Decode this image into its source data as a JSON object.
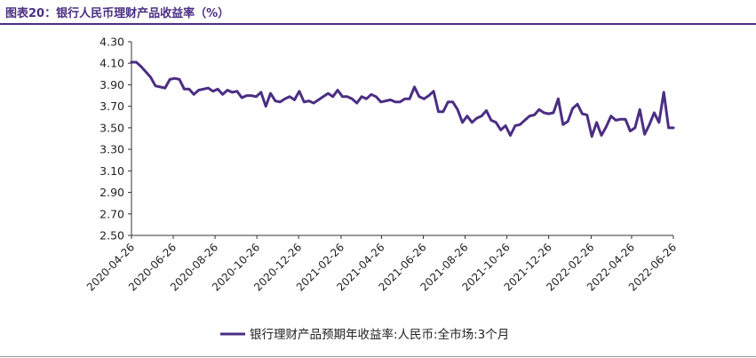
{
  "figure": {
    "title": "图表20：银行人民币理财产品收益率（%）"
  },
  "colors": {
    "accent": "#4b2e83",
    "line": "#4b2e83",
    "axis": "#333333"
  },
  "chart_data": {
    "type": "line",
    "title": "",
    "xlabel": "",
    "ylabel": "",
    "ylim": [
      2.5,
      4.3
    ],
    "yticks": [
      "4.30",
      "4.10",
      "3.90",
      "3.70",
      "3.50",
      "3.30",
      "3.10",
      "2.90",
      "2.70",
      "2.50"
    ],
    "xrange": [
      "2020-04-26",
      "2022-06-26"
    ],
    "xticks": [
      "2020-04-26",
      "2020-06-26",
      "2020-08-26",
      "2020-10-26",
      "2020-12-26",
      "2021-02-26",
      "2021-04-26",
      "2021-06-26",
      "2021-08-26",
      "2021-10-26",
      "2021-12-26",
      "2022-02-26",
      "2022-04-26",
      "2022-06-26"
    ],
    "grid": false,
    "legend": "bottom",
    "series": [
      {
        "name": "银行理财产品预期年收益率:人民币:全市场:3个月",
        "points": [
          [
            "2020-04-26",
            4.11
          ],
          [
            "2020-05-03",
            4.11
          ],
          [
            "2020-05-10",
            4.07
          ],
          [
            "2020-05-17",
            4.02
          ],
          [
            "2020-05-24",
            3.97
          ],
          [
            "2020-05-31",
            3.89
          ],
          [
            "2020-06-07",
            3.88
          ],
          [
            "2020-06-14",
            3.87
          ],
          [
            "2020-06-21",
            3.95
          ],
          [
            "2020-06-28",
            3.96
          ],
          [
            "2020-07-05",
            3.95
          ],
          [
            "2020-07-12",
            3.86
          ],
          [
            "2020-07-19",
            3.86
          ],
          [
            "2020-07-26",
            3.81
          ],
          [
            "2020-08-02",
            3.85
          ],
          [
            "2020-08-09",
            3.86
          ],
          [
            "2020-08-16",
            3.87
          ],
          [
            "2020-08-23",
            3.84
          ],
          [
            "2020-08-30",
            3.86
          ],
          [
            "2020-09-06",
            3.81
          ],
          [
            "2020-09-13",
            3.85
          ],
          [
            "2020-09-20",
            3.83
          ],
          [
            "2020-09-27",
            3.84
          ],
          [
            "2020-10-04",
            3.78
          ],
          [
            "2020-10-11",
            3.8
          ],
          [
            "2020-10-18",
            3.8
          ],
          [
            "2020-10-25",
            3.79
          ],
          [
            "2020-11-01",
            3.83
          ],
          [
            "2020-11-08",
            3.7
          ],
          [
            "2020-11-15",
            3.82
          ],
          [
            "2020-11-22",
            3.75
          ],
          [
            "2020-11-29",
            3.74
          ],
          [
            "2020-12-06",
            3.77
          ],
          [
            "2020-12-13",
            3.79
          ],
          [
            "2020-12-20",
            3.76
          ],
          [
            "2020-12-27",
            3.84
          ],
          [
            "2021-01-03",
            3.74
          ],
          [
            "2021-01-10",
            3.75
          ],
          [
            "2021-01-17",
            3.73
          ],
          [
            "2021-01-24",
            3.76
          ],
          [
            "2021-01-31",
            3.79
          ],
          [
            "2021-02-07",
            3.82
          ],
          [
            "2021-02-14",
            3.79
          ],
          [
            "2021-02-21",
            3.85
          ],
          [
            "2021-02-28",
            3.79
          ],
          [
            "2021-03-07",
            3.79
          ],
          [
            "2021-03-14",
            3.77
          ],
          [
            "2021-03-21",
            3.73
          ],
          [
            "2021-03-28",
            3.79
          ],
          [
            "2021-04-04",
            3.77
          ],
          [
            "2021-04-11",
            3.81
          ],
          [
            "2021-04-18",
            3.79
          ],
          [
            "2021-04-25",
            3.74
          ],
          [
            "2021-05-02",
            3.75
          ],
          [
            "2021-05-09",
            3.76
          ],
          [
            "2021-05-16",
            3.74
          ],
          [
            "2021-05-23",
            3.74
          ],
          [
            "2021-05-30",
            3.77
          ],
          [
            "2021-06-06",
            3.77
          ],
          [
            "2021-06-13",
            3.88
          ],
          [
            "2021-06-20",
            3.79
          ],
          [
            "2021-06-27",
            3.77
          ],
          [
            "2021-07-04",
            3.8
          ],
          [
            "2021-07-11",
            3.84
          ],
          [
            "2021-07-18",
            3.65
          ],
          [
            "2021-07-25",
            3.65
          ],
          [
            "2021-08-01",
            3.74
          ],
          [
            "2021-08-08",
            3.74
          ],
          [
            "2021-08-15",
            3.67
          ],
          [
            "2021-08-22",
            3.55
          ],
          [
            "2021-08-29",
            3.61
          ],
          [
            "2021-09-05",
            3.55
          ],
          [
            "2021-09-12",
            3.59
          ],
          [
            "2021-09-19",
            3.61
          ],
          [
            "2021-09-26",
            3.66
          ],
          [
            "2021-10-03",
            3.57
          ],
          [
            "2021-10-10",
            3.55
          ],
          [
            "2021-10-17",
            3.48
          ],
          [
            "2021-10-24",
            3.52
          ],
          [
            "2021-10-31",
            3.43
          ],
          [
            "2021-11-07",
            3.52
          ],
          [
            "2021-11-14",
            3.53
          ],
          [
            "2021-11-21",
            3.57
          ],
          [
            "2021-11-28",
            3.61
          ],
          [
            "2021-12-05",
            3.62
          ],
          [
            "2021-12-12",
            3.67
          ],
          [
            "2021-12-19",
            3.64
          ],
          [
            "2021-12-26",
            3.63
          ],
          [
            "2022-01-02",
            3.64
          ],
          [
            "2022-01-09",
            3.77
          ],
          [
            "2022-01-16",
            3.53
          ],
          [
            "2022-01-23",
            3.56
          ],
          [
            "2022-01-30",
            3.68
          ],
          [
            "2022-02-06",
            3.72
          ],
          [
            "2022-02-13",
            3.63
          ],
          [
            "2022-02-20",
            3.62
          ],
          [
            "2022-02-27",
            3.42
          ],
          [
            "2022-03-06",
            3.55
          ],
          [
            "2022-03-13",
            3.43
          ],
          [
            "2022-03-20",
            3.51
          ],
          [
            "2022-03-27",
            3.61
          ],
          [
            "2022-04-03",
            3.57
          ],
          [
            "2022-04-10",
            3.58
          ],
          [
            "2022-04-17",
            3.58
          ],
          [
            "2022-04-24",
            3.47
          ],
          [
            "2022-05-01",
            3.5
          ],
          [
            "2022-05-08",
            3.67
          ],
          [
            "2022-05-15",
            3.44
          ],
          [
            "2022-05-22",
            3.53
          ],
          [
            "2022-05-29",
            3.64
          ],
          [
            "2022-06-05",
            3.55
          ],
          [
            "2022-06-12",
            3.83
          ],
          [
            "2022-06-19",
            3.5
          ],
          [
            "2022-06-26",
            3.5
          ]
        ]
      }
    ]
  }
}
